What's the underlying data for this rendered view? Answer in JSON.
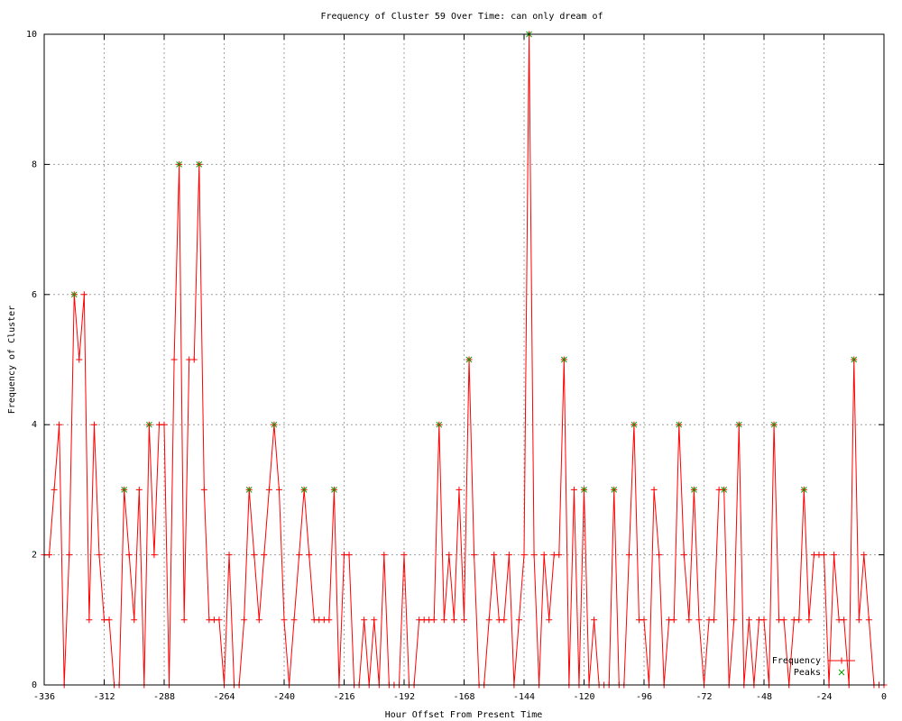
{
  "chart_data": {
    "type": "line",
    "title": "Frequency of Cluster 59 Over Time: can only dream of",
    "xlabel": "Hour Offset From Present Time",
    "ylabel": "Frequency of Cluster",
    "xlim": [
      -336,
      0
    ],
    "ylim": [
      0,
      10
    ],
    "xticks": [
      -336,
      -312,
      -288,
      -264,
      -240,
      -216,
      -192,
      -168,
      -144,
      -120,
      -96,
      -72,
      -48,
      -24,
      0
    ],
    "yticks": [
      0,
      2,
      4,
      6,
      8,
      10
    ],
    "grid": true,
    "legend": "bottom right",
    "series": [
      {
        "name": "Frequency",
        "color": "#ff0000",
        "marker": "plus",
        "x": [
          -336,
          -334,
          -332,
          -330,
          -328,
          -326,
          -324,
          -322,
          -320,
          -318,
          -316,
          -314,
          -312,
          -310,
          -308,
          -306,
          -304,
          -302,
          -300,
          -298,
          -296,
          -294,
          -292,
          -290,
          -288,
          -286,
          -284,
          -282,
          -280,
          -278,
          -276,
          -274,
          -272,
          -270,
          -268,
          -266,
          -264,
          -262,
          -260,
          -258,
          -256,
          -254,
          -252,
          -250,
          -248,
          -246,
          -244,
          -242,
          -240,
          -238,
          -236,
          -234,
          -232,
          -230,
          -228,
          -226,
          -224,
          -222,
          -220,
          -218,
          -216,
          -214,
          -212,
          -210,
          -208,
          -206,
          -204,
          -202,
          -200,
          -198,
          -196,
          -194,
          -192,
          -190,
          -188,
          -186,
          -184,
          -182,
          -180,
          -178,
          -176,
          -174,
          -172,
          -170,
          -168,
          -166,
          -164,
          -162,
          -160,
          -158,
          -156,
          -154,
          -152,
          -150,
          -148,
          -146,
          -144,
          -142,
          -140,
          -138,
          -136,
          -134,
          -132,
          -130,
          -128,
          -126,
          -124,
          -122,
          -120,
          -118,
          -116,
          -114,
          -112,
          -110,
          -108,
          -106,
          -104,
          -102,
          -100,
          -98,
          -96,
          -94,
          -92,
          -90,
          -88,
          -86,
          -84,
          -82,
          -80,
          -78,
          -76,
          -74,
          -72,
          -70,
          -68,
          -66,
          -64,
          -62,
          -60,
          -58,
          -56,
          -54,
          -52,
          -50,
          -48,
          -46,
          -44,
          -42,
          -40,
          -38,
          -36,
          -34,
          -32,
          -30,
          -28,
          -26,
          -24,
          -22,
          -20,
          -18,
          -16,
          -14,
          -12,
          -10,
          -8,
          -6,
          -4,
          -2,
          0
        ],
        "values": [
          2,
          2,
          3,
          4,
          0,
          2,
          6,
          5,
          6,
          1,
          4,
          2,
          1,
          1,
          0,
          0,
          3,
          2,
          1,
          3,
          0,
          4,
          2,
          4,
          4,
          0,
          5,
          8,
          1,
          5,
          5,
          8,
          3,
          1,
          1,
          1,
          0,
          2,
          0,
          0,
          1,
          3,
          2,
          1,
          2,
          3,
          4,
          3,
          1,
          0,
          1,
          2,
          3,
          2,
          1,
          1,
          1,
          1,
          3,
          0,
          2,
          2,
          0,
          0,
          1,
          0,
          1,
          0,
          2,
          0,
          0,
          0,
          2,
          0,
          0,
          1,
          1,
          1,
          1,
          4,
          1,
          2,
          1,
          3,
          1,
          5,
          2,
          0,
          0,
          1,
          2,
          1,
          1,
          2,
          0,
          1,
          2,
          10,
          2,
          0,
          2,
          1,
          2,
          2,
          5,
          0,
          3,
          0,
          3,
          0,
          1,
          0,
          0,
          0,
          3,
          0,
          0,
          2,
          4,
          1,
          1,
          0,
          3,
          2,
          0,
          1,
          1,
          4,
          2,
          1,
          3,
          1,
          0,
          1,
          1,
          3,
          3,
          0,
          1,
          4,
          0,
          1,
          0,
          1,
          1,
          0,
          4,
          1,
          1,
          0,
          1,
          1,
          3,
          1,
          2,
          2,
          2,
          0,
          2,
          1,
          1,
          0,
          5,
          1,
          2,
          1,
          0,
          0,
          0
        ]
      },
      {
        "name": "Peaks",
        "color": "#00a000",
        "marker": "cross",
        "x": [
          -324,
          -304,
          -294,
          -282,
          -274,
          -254,
          -244,
          -232,
          -220,
          -178,
          -166,
          -142,
          -128,
          -120,
          -108,
          -100,
          -82,
          -76,
          -64,
          -58,
          -44,
          -32,
          -12
        ],
        "values": [
          6,
          3,
          4,
          8,
          8,
          3,
          4,
          3,
          3,
          4,
          5,
          10,
          5,
          3,
          3,
          4,
          4,
          3,
          3,
          4,
          4,
          3,
          5
        ]
      }
    ]
  }
}
